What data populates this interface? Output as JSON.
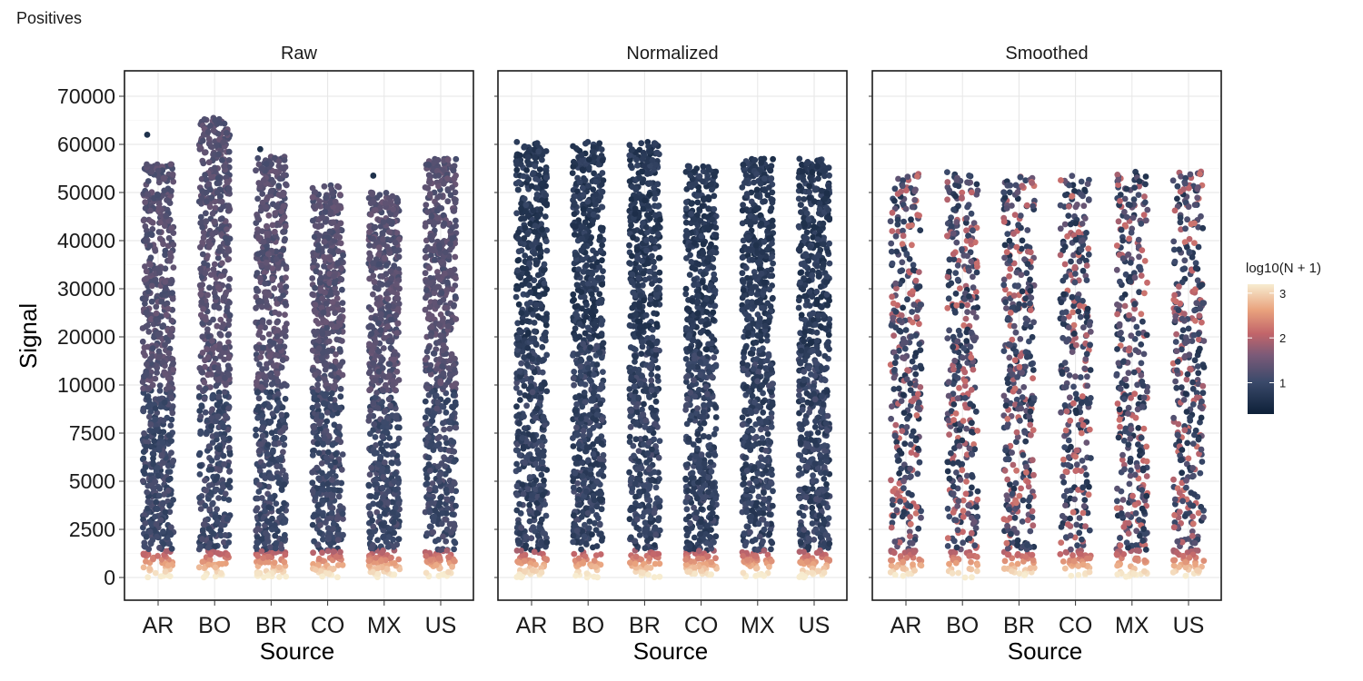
{
  "title": "Positives",
  "chart_data": {
    "type": "scatter",
    "jitter_strip": true,
    "title": "Positives",
    "xlabel": "Source",
    "ylabel": "Signal",
    "y_scale": "piecewise: 0-10000 expanded, 10000-70000 compressed",
    "y_ticks": [
      0,
      2500,
      5000,
      7500,
      10000,
      20000,
      30000,
      40000,
      50000,
      60000,
      70000
    ],
    "y_tick_labels": [
      "0",
      "2500",
      "5000",
      "7500",
      "10000",
      "20000",
      "30000",
      "40000",
      "50000",
      "60000",
      "70000"
    ],
    "categories": [
      "AR",
      "BO",
      "BR",
      "CO",
      "MX",
      "US"
    ],
    "color_legend": {
      "title": "log10(N + 1)",
      "ticks": [
        "1",
        "2",
        "3"
      ],
      "range": [
        0.3,
        3.2
      ],
      "colors": [
        "#0d2038",
        "#3b4a6b",
        "#7a5a78",
        "#c2656a",
        "#e9a27d",
        "#f7ecd0"
      ]
    },
    "grid": true,
    "facets": [
      {
        "name": "Raw",
        "series": [
          {
            "category": "AR",
            "min": 0,
            "max": 56000,
            "outlier": 62000,
            "density_top": 30
          },
          {
            "category": "BO",
            "min": 0,
            "max": 65500,
            "outlier": null,
            "density_top": 45
          },
          {
            "category": "BR",
            "min": 0,
            "max": 57500,
            "outlier": 59000,
            "density_top": 30
          },
          {
            "category": "CO",
            "min": 0,
            "max": 51500,
            "outlier": null,
            "density_top": 30
          },
          {
            "category": "MX",
            "min": 0,
            "max": 50000,
            "outlier": 53500,
            "density_top": 30
          },
          {
            "category": "US",
            "min": 0,
            "max": 57000,
            "outlier": null,
            "density_top": 30
          }
        ]
      },
      {
        "name": "Normalized",
        "series": [
          {
            "category": "AR",
            "min": 0,
            "max": 60500,
            "outlier": null,
            "density_top": 10
          },
          {
            "category": "BO",
            "min": 0,
            "max": 60500,
            "outlier": null,
            "density_top": 10
          },
          {
            "category": "BR",
            "min": 0,
            "max": 60500,
            "outlier": null,
            "density_top": 10
          },
          {
            "category": "CO",
            "min": 0,
            "max": 55500,
            "outlier": null,
            "density_top": 10
          },
          {
            "category": "MX",
            "min": 0,
            "max": 57000,
            "outlier": null,
            "density_top": 10
          },
          {
            "category": "US",
            "min": 0,
            "max": 57000,
            "outlier": null,
            "density_top": 10
          }
        ]
      },
      {
        "name": "Smoothed",
        "series": [
          {
            "category": "AR",
            "min": 0,
            "max": 54000,
            "outlier": null,
            "density_top": 30
          },
          {
            "category": "BO",
            "min": 0,
            "max": 54500,
            "outlier": null,
            "density_top": 35
          },
          {
            "category": "BR",
            "min": 0,
            "max": 53500,
            "outlier": null,
            "density_top": 30
          },
          {
            "category": "CO",
            "min": 0,
            "max": 53500,
            "outlier": null,
            "density_top": 30
          },
          {
            "category": "MX",
            "min": 0,
            "max": 54500,
            "outlier": null,
            "density_top": 35
          },
          {
            "category": "US",
            "min": 0,
            "max": 54500,
            "outlier": null,
            "density_top": 35
          }
        ]
      }
    ]
  }
}
